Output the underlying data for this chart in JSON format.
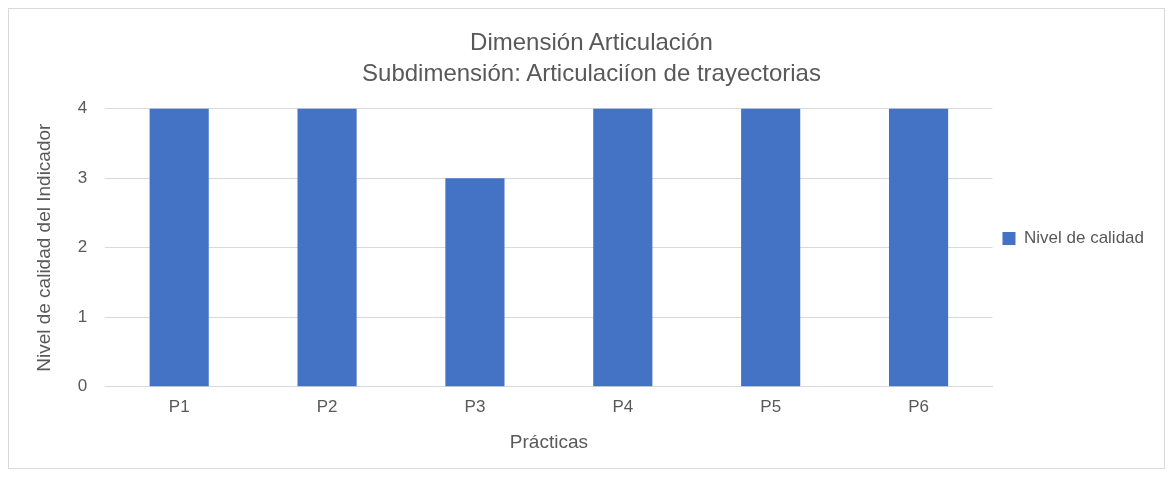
{
  "chart_data": {
    "type": "bar",
    "title": "Dimensión Articulación",
    "subtitle": "Subdimensión: Articulaciíon de trayectorias",
    "xlabel": "Prácticas",
    "ylabel": "Nivel de calidad del Indicador",
    "categories": [
      "P1",
      "P2",
      "P3",
      "P4",
      "P5",
      "P6"
    ],
    "series": [
      {
        "name": "Nivel de calidad",
        "color": "#4472c4",
        "values": [
          4,
          4,
          3,
          4,
          4,
          4
        ]
      }
    ],
    "ylim": [
      0,
      4
    ],
    "yticks": [
      0,
      1,
      2,
      3,
      4
    ],
    "grid": "y",
    "legend": "right"
  }
}
